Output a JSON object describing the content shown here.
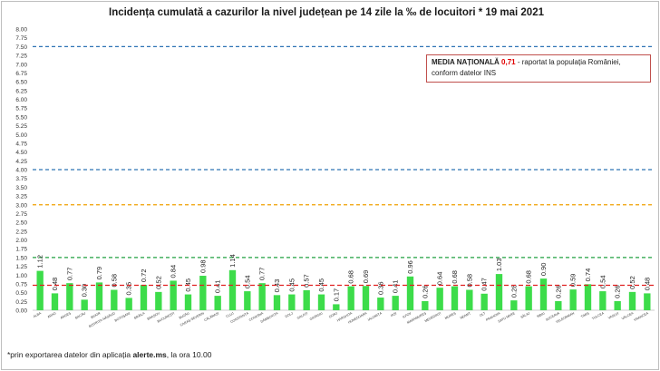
{
  "title": "Incidența cumulată a cazurilor la nivel județean pe 14 zile la ‰ de locuitori *  19 mai 2021",
  "footnote": {
    "prefix": "*prin exportarea datelor din aplicația ",
    "app": "alerte.ms",
    "suffix": ", la ora 10.00"
  },
  "legend": {
    "label": "MEDIA NAȚIONALĂ",
    "value": "0,71",
    "text1": " - raportat la populația României,",
    "text2": "conform datelor INS"
  },
  "colors": {
    "bar": "#3ddc4a",
    "national_line": "#e02020",
    "line_7_5": "#2e74b5",
    "line_4": "#2e74b5",
    "line_3": "#f0a000",
    "line_1_5": "#20a040"
  },
  "chart_data": {
    "type": "bar",
    "title": "Incidența cumulată a cazurilor la nivel județean pe 14 zile la ‰ de locuitori *  19 mai 2021",
    "ylim": [
      0,
      8
    ],
    "yticks": [
      "0.00",
      "0.25",
      "0.50",
      "0.75",
      "1.00",
      "1.25",
      "1.50",
      "1.75",
      "2.00",
      "2.25",
      "2.50",
      "2.75",
      "3.00",
      "3.25",
      "3.50",
      "3.75",
      "4.00",
      "4.25",
      "4.50",
      "4.75",
      "5.00",
      "5.25",
      "5.50",
      "5.75",
      "6.00",
      "6.25",
      "6.50",
      "6.75",
      "7.00",
      "7.25",
      "7.50",
      "7.75",
      "8.00"
    ],
    "categories": [
      "ALBA",
      "ARAD",
      "ARGEȘ",
      "BACĂU",
      "BIHOR",
      "BISTRIȚA-NĂSĂUD",
      "BOTOȘANI",
      "BRĂILA",
      "BRAȘOV",
      "BUCUREȘTI",
      "BUZĂU",
      "CARAȘ-SEVERIN",
      "CĂLĂRAȘI",
      "CLUJ",
      "CONSTANȚA",
      "COVASNA",
      "DÂMBOVIȚA",
      "DOLJ",
      "GALAȚI",
      "GIURGIU",
      "GORJ",
      "HARGHITA",
      "HUNEDOARA",
      "IALOMIȚA",
      "IAȘI",
      "ILFOV",
      "MARAMUREȘ",
      "MEHEDINȚI",
      "MUREȘ",
      "NEAMȚ",
      "OLT",
      "PRAHOVA",
      "SATU MARE",
      "SĂLAJ",
      "SIBIU",
      "SUCEAVA",
      "TELEORMAN",
      "TIMIȘ",
      "TULCEA",
      "VASLUI",
      "VÂLCEA",
      "VRANCEA"
    ],
    "values": [
      1.12,
      0.48,
      0.77,
      0.3,
      0.79,
      0.58,
      0.35,
      0.72,
      0.52,
      0.84,
      0.45,
      0.98,
      0.41,
      1.14,
      0.54,
      0.77,
      0.43,
      0.45,
      0.57,
      0.45,
      0.17,
      0.68,
      0.69,
      0.36,
      0.41,
      0.96,
      0.26,
      0.64,
      0.68,
      0.58,
      0.47,
      1.03,
      0.28,
      0.68,
      0.9,
      0.26,
      0.59,
      0.74,
      0.54,
      0.26,
      0.52,
      0.48
    ],
    "value_labels": [
      "1.12",
      "0.48",
      "0.77",
      "0.30",
      "0.79",
      "0.58",
      "0.35",
      "0.72",
      "0.52",
      "0.84",
      "0.45",
      "0.98",
      "0.41",
      "1.14",
      "0.54",
      "0.77",
      "0.43",
      "0.45",
      "0.57",
      "0.45",
      "0.17",
      "0.68",
      "0.69",
      "0.36",
      "0.41",
      "0.96",
      "0.26",
      "0.64",
      "0.68",
      "0.58",
      "0.47",
      "1.03",
      "0.28",
      "0.68",
      "0.90",
      "0.26",
      "0.59",
      "0.74",
      "0.54",
      "0.26",
      "0.52",
      "0.48"
    ],
    "national_average": 0.71,
    "threshold_lines": [
      7.5,
      4.0,
      3.0,
      1.5
    ],
    "grid": false,
    "legend_position": "top-right"
  }
}
